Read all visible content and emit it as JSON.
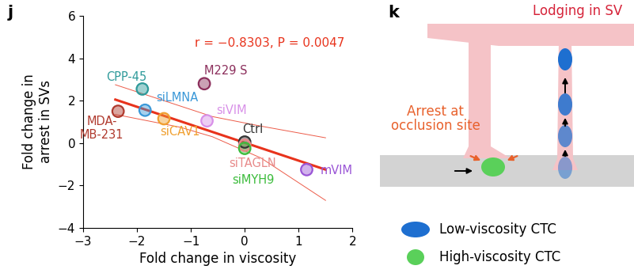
{
  "chart_data": {
    "type": "scatter",
    "panel_label": "j",
    "x_label": "Fold change in viscosity",
    "y_label": "Fold change in\narrest in SVs",
    "annotation": "r = −0.8303, P = 0.0047",
    "annotation_color": "#e8331c",
    "xlim": [
      -3,
      2
    ],
    "xticks": [
      {
        "value": -3,
        "label": "−3"
      },
      {
        "value": -2,
        "label": "−2"
      },
      {
        "value": -1,
        "label": "−1"
      },
      0,
      1,
      2
    ],
    "ylim": [
      -4,
      6
    ],
    "yticks": [
      {
        "value": -4,
        "label": "−4"
      },
      {
        "value": -2,
        "label": "−2"
      },
      0,
      2,
      4,
      6
    ],
    "grid": false,
    "series": [
      {
        "name": "MDA-\nMB-231",
        "color": "#b03a2e",
        "x": [
          -2.35
        ],
        "values": [
          1.5
        ]
      },
      {
        "name": "CPP-45",
        "color": "#2e9a9a",
        "x": [
          -1.9
        ],
        "values": [
          2.55
        ]
      },
      {
        "name": "siLMNA",
        "color": "#3a98d8",
        "x": [
          -1.85
        ],
        "values": [
          1.55
        ]
      },
      {
        "name": "siCAV1",
        "color": "#f0a030",
        "x": [
          -1.5
        ],
        "values": [
          1.15
        ]
      },
      {
        "name": "M229 S",
        "color": "#8c2f5c",
        "x": [
          -0.75
        ],
        "values": [
          2.8
        ]
      },
      {
        "name": "siVIM",
        "color": "#d890e8",
        "x": [
          -0.7
        ],
        "values": [
          1.05
        ]
      },
      {
        "name": "Ctrl",
        "color": "#333333",
        "x": [
          0.0
        ],
        "values": [
          0.05
        ]
      },
      {
        "name": "siTAGLN",
        "color": "#e88a8a",
        "x": [
          0.0
        ],
        "values": [
          -0.1
        ]
      },
      {
        "name": "siMYH9",
        "color": "#3cbc3c",
        "x": [
          0.0
        ],
        "values": [
          -0.25
        ]
      },
      {
        "name": "mVIM",
        "color": "#9a55d6",
        "x": [
          1.15
        ],
        "values": [
          -1.25
        ]
      }
    ],
    "fit": {
      "color": "#e8331c",
      "x": [
        -2.4,
        1.5
      ],
      "values": [
        2.05,
        -1.25
      ]
    },
    "band": {
      "color": "#e8331c",
      "x": [
        -2.4,
        -1.2,
        -0.6,
        0.3,
        1.5
      ],
      "upper": [
        2.75,
        1.75,
        1.25,
        0.8,
        0.25
      ],
      "lower": [
        1.35,
        0.75,
        0.3,
        -0.7,
        -2.7
      ]
    }
  },
  "diagram": {
    "panel_label": "k",
    "annotations": [
      {
        "text": "Lodging in SV",
        "color": "#d6243a"
      },
      {
        "text": "Arrest at\nocclusion site",
        "color": "#e8612c"
      }
    ],
    "legend": [
      {
        "text": "Low-viscosity CTC",
        "color": "#1e6fd0"
      },
      {
        "text": "High-viscosity CTC",
        "color": "#5ad05a"
      }
    ]
  }
}
